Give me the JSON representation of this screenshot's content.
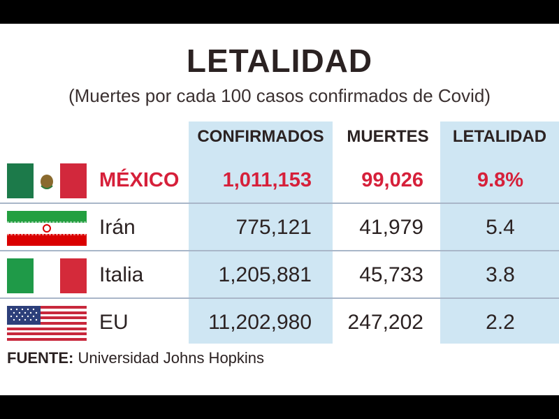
{
  "title": "LETALIDAD",
  "subtitle": "(Muertes por cada 100 casos confirmados de Covid)",
  "source": {
    "label": "FUENTE:",
    "text": "Universidad Johns Hopkins"
  },
  "colors": {
    "highlight": "#d6203a",
    "band": "#cfe6f3",
    "text": "#2b2222"
  },
  "chart_data": {
    "type": "table",
    "title": "LETALIDAD",
    "subtitle": "(Muertes por cada 100 casos confirmados de Covid)",
    "columns": [
      "CONFIRMADOS",
      "MUERTES",
      "LETALIDAD"
    ],
    "rows": [
      {
        "country": "MÉXICO",
        "flag": "mexico-flag",
        "confirmados": "1,011,153",
        "muertes": "99,026",
        "letalidad": "9.8%",
        "highlight": true
      },
      {
        "country": "Irán",
        "flag": "iran-flag",
        "confirmados": "775,121",
        "muertes": "41,979",
        "letalidad": "5.4",
        "highlight": false
      },
      {
        "country": "Italia",
        "flag": "italy-flag",
        "confirmados": "1,205,881",
        "muertes": "45,733",
        "letalidad": "3.8",
        "highlight": false
      },
      {
        "country": "EU",
        "flag": "usa-flag",
        "confirmados": "11,202,980",
        "muertes": "247,202",
        "letalidad": "2.2",
        "highlight": false
      }
    ]
  }
}
